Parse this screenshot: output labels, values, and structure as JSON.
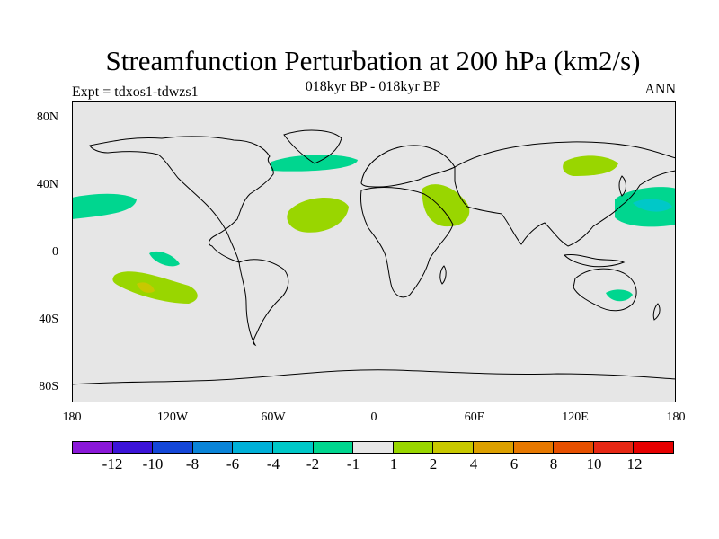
{
  "header": {
    "title": "Streamfunction Perturbation at 200 hPa (km2/s)",
    "subtitle": "018kyr BP - 018kyr BP",
    "left_label": "Expt = tdxos1-tdwzs1",
    "right_label": "ANN"
  },
  "map": {
    "projection": "cylindrical-equidistant",
    "ocean_color": "#e6e6e6",
    "coast_color": "#000000",
    "lat_labels": [
      "80N",
      "40N",
      "0",
      "40S",
      "80S"
    ],
    "lon_labels": [
      "180",
      "120W",
      "60W",
      "0",
      "60E",
      "120E",
      "180"
    ],
    "anomalies": [
      {
        "region": "North Atlantic",
        "class": "-2 to -1",
        "color": "#00d68f"
      },
      {
        "region": "Central Atlantic",
        "class": "1 to 2",
        "color": "#99d600"
      },
      {
        "region": "Arabia / Red Sea",
        "class": "1 to 2",
        "color": "#99d600"
      },
      {
        "region": "NE Asia",
        "class": "1 to 2",
        "color": "#99d600"
      },
      {
        "region": "Subtropical NE Pacific",
        "class": "-2 to -1",
        "color": "#00d68f"
      },
      {
        "region": "Equatorial E Pacific",
        "class": "-2 to -1",
        "color": "#00d68f"
      },
      {
        "region": "South Pacific",
        "class": "1 to 2",
        "color": "#99d600"
      },
      {
        "region": "South Pacific core",
        "class": "2 to 4",
        "color": "#c8c800"
      },
      {
        "region": "NW Pacific",
        "class": "-2 to -1",
        "color": "#00d68f"
      },
      {
        "region": "NW Pacific core",
        "class": "-4 to -2",
        "color": "#00c8c8"
      },
      {
        "region": "East Australia",
        "class": "-2 to -1",
        "color": "#00d68f"
      }
    ]
  },
  "colorbar": {
    "colors": [
      "#8a18d8",
      "#3c14d8",
      "#1447d8",
      "#0a84d8",
      "#00b0d8",
      "#00c8c8",
      "#00d68f",
      "#e6e6e6",
      "#99d600",
      "#c8c800",
      "#dca000",
      "#e67800",
      "#e65000",
      "#e62814",
      "#e60000"
    ],
    "labels": [
      "-12",
      "-10",
      "-8",
      "-6",
      "-4",
      "-2",
      "-1",
      "1",
      "2",
      "4",
      "6",
      "8",
      "10",
      "12"
    ]
  }
}
